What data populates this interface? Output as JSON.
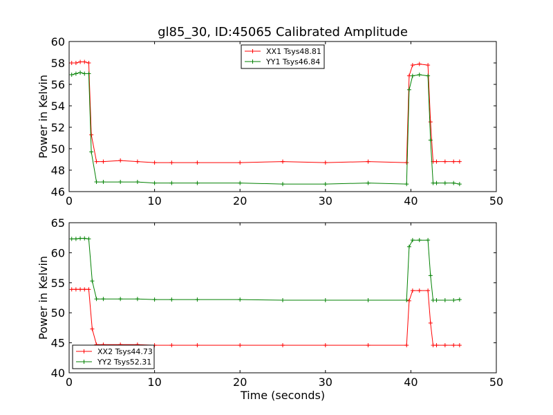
{
  "chart_data": [
    {
      "type": "line",
      "title": "gl85_30, ID:45065 Calibrated Amplitude",
      "xlabel": "",
      "ylabel": "Power in Kelvin",
      "xlim": [
        0,
        50
      ],
      "ylim": [
        46,
        60
      ],
      "xticks": [
        0,
        10,
        20,
        30,
        40,
        50
      ],
      "yticks": [
        46,
        48,
        50,
        52,
        54,
        56,
        58,
        60
      ],
      "grid": false,
      "legend_position": "top-center",
      "series": [
        {
          "name": "XX1 Tsys48.81",
          "color": "#ff0000",
          "x": [
            0.3,
            0.8,
            1.3,
            1.8,
            2.3,
            2.6,
            3.2,
            4,
            6,
            8,
            10,
            12,
            15,
            20,
            25,
            30,
            35,
            39.5,
            39.8,
            40.2,
            41,
            42,
            42.3,
            42.6,
            43,
            44,
            45,
            45.7
          ],
          "y": [
            58.0,
            58.0,
            58.1,
            58.1,
            58.0,
            51.3,
            48.8,
            48.8,
            48.9,
            48.8,
            48.7,
            48.7,
            48.7,
            48.7,
            48.8,
            48.7,
            48.8,
            48.7,
            56.8,
            57.8,
            57.9,
            57.8,
            52.5,
            48.8,
            48.8,
            48.8,
            48.8,
            48.8
          ]
        },
        {
          "name": "YY1 Tsys46.84",
          "color": "#008000",
          "x": [
            0.3,
            0.8,
            1.3,
            1.8,
            2.3,
            2.6,
            3.2,
            4,
            6,
            8,
            10,
            12,
            15,
            20,
            25,
            30,
            35,
            39.5,
            39.8,
            40.2,
            41,
            42,
            42.3,
            42.6,
            43,
            44,
            45,
            45.7
          ],
          "y": [
            56.9,
            57.0,
            57.1,
            57.0,
            57.0,
            49.7,
            46.9,
            46.9,
            46.9,
            46.9,
            46.8,
            46.8,
            46.8,
            46.8,
            46.7,
            46.7,
            46.8,
            46.7,
            55.5,
            56.8,
            56.9,
            56.8,
            50.8,
            46.8,
            46.8,
            46.8,
            46.8,
            46.7
          ]
        }
      ]
    },
    {
      "type": "line",
      "title": "",
      "xlabel": "Time (seconds)",
      "ylabel": "Power in Kelvin",
      "xlim": [
        0,
        50
      ],
      "ylim": [
        40,
        65
      ],
      "xticks": [
        0,
        10,
        20,
        30,
        40,
        50
      ],
      "yticks": [
        40,
        45,
        50,
        55,
        60,
        65
      ],
      "grid": false,
      "legend_position": "bottom-left",
      "series": [
        {
          "name": "XX2 Tsys44.73",
          "color": "#ff0000",
          "x": [
            0.3,
            0.8,
            1.3,
            1.8,
            2.3,
            2.7,
            3.2,
            4,
            6,
            8,
            10,
            12,
            15,
            20,
            25,
            30,
            35,
            39.5,
            39.8,
            40.2,
            41,
            42,
            42.3,
            42.6,
            43,
            44,
            45,
            45.7
          ],
          "y": [
            53.9,
            53.9,
            53.9,
            53.9,
            53.9,
            47.3,
            44.7,
            44.7,
            44.7,
            44.7,
            44.6,
            44.6,
            44.6,
            44.6,
            44.6,
            44.6,
            44.6,
            44.6,
            52.0,
            53.7,
            53.7,
            53.7,
            48.3,
            44.6,
            44.6,
            44.6,
            44.6,
            44.6
          ]
        },
        {
          "name": "YY2 Tsys52.31",
          "color": "#008000",
          "x": [
            0.3,
            0.8,
            1.3,
            1.8,
            2.3,
            2.7,
            3.2,
            4,
            6,
            8,
            10,
            12,
            15,
            20,
            25,
            30,
            35,
            39.5,
            39.8,
            40.2,
            41,
            42,
            42.3,
            42.6,
            43,
            44,
            45,
            45.7
          ],
          "y": [
            62.3,
            62.3,
            62.4,
            62.4,
            62.3,
            55.3,
            52.3,
            52.3,
            52.3,
            52.3,
            52.2,
            52.2,
            52.2,
            52.2,
            52.1,
            52.1,
            52.1,
            52.1,
            61.0,
            62.1,
            62.1,
            62.1,
            56.2,
            52.1,
            52.1,
            52.1,
            52.1,
            52.2
          ]
        }
      ]
    }
  ]
}
